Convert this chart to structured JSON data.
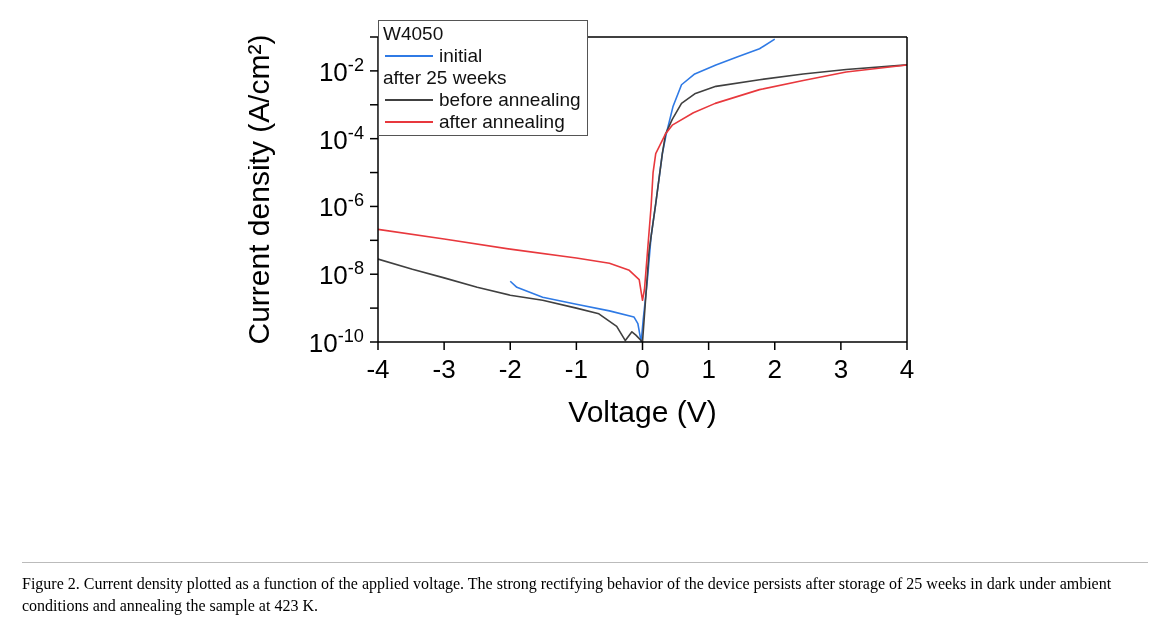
{
  "chart_data": {
    "type": "line",
    "xlabel": "Voltage (V)",
    "ylabel": "Current density (A/cm²)",
    "legend_title": "W4050",
    "legend": "top left",
    "log": "y",
    "marker": "none",
    "line_style": "solid",
    "grid": false,
    "xlim": [
      -4,
      4
    ],
    "xticks": [
      -4,
      -3,
      -2,
      -1,
      0,
      1,
      2,
      3,
      4
    ],
    "ylim": [
      1e-10,
      0.1
    ],
    "yticks": [
      {
        "value": 1e-10,
        "label": "10$^{-10}$"
      },
      {
        "value": 1e-09,
        "label": null
      },
      {
        "value": 1e-08,
        "label": "10$^{-8}$"
      },
      {
        "value": 1e-07,
        "label": null
      },
      {
        "value": 1e-06,
        "label": "10$^{-6}$"
      },
      {
        "value": 1e-05,
        "label": null
      },
      {
        "value": 0.0001,
        "label": "10$^{-4}$"
      },
      {
        "value": 0.001,
        "label": null
      },
      {
        "value": 0.01,
        "label": "10$^{-2}$"
      },
      {
        "value": 0.1,
        "label": null
      }
    ],
    "annotations": [
      "after 25 weeks",
      "Figure 2. Current density plotted as a function of the applied voltage. The strong rectifying behavior of the device persists after storage of 25 weeks in dark under ambient conditions and annealing the sample at 423 K."
    ],
    "series": [
      {
        "name": "initial",
        "color": "#2f7ae5",
        "x": [
          -2,
          -1.9,
          -1.51,
          -1,
          -0.5,
          -0.13,
          -0.07,
          -0.02,
          0.01,
          0.07,
          0.13,
          0.2,
          0.3,
          0.36,
          0.46,
          0.59,
          0.79,
          1.11,
          1.44,
          1.77,
          2
        ],
        "values": [
          6.2e-09,
          4.1e-09,
          2.1e-09,
          1.3e-09,
          8.3e-10,
          5.5e-10,
          3.5e-10,
          1e-10,
          4.4e-10,
          5.6e-09,
          1.3e-07,
          1.2e-06,
          3.6e-05,
          0.00014,
          0.00087,
          0.0039,
          0.0081,
          0.015,
          0.026,
          0.045,
          0.087
        ]
      },
      {
        "name": "before annealing",
        "color": "#404040",
        "x": [
          -4,
          -3.48,
          -3,
          -2.5,
          -2,
          -1.51,
          -1,
          -0.66,
          -0.39,
          -0.26,
          -0.16,
          -0.1,
          0,
          0.1,
          0.2,
          0.3,
          0.35,
          0.45,
          0.59,
          0.79,
          1.11,
          1.77,
          2.43,
          3.08,
          4
        ],
        "values": [
          2.8e-08,
          1.4e-08,
          7.8e-09,
          4.1e-09,
          2.4e-09,
          1.7e-09,
          1e-09,
          6.8e-10,
          2.9e-10,
          1.1e-10,
          2e-10,
          1.6e-10,
          1e-10,
          5e-08,
          1.2e-06,
          3.6e-05,
          0.00014,
          0.00037,
          0.0011,
          0.0021,
          0.0035,
          0.0055,
          0.0081,
          0.011,
          0.015
        ]
      },
      {
        "name": "after annealing",
        "color": "#e8383d",
        "x": [
          -4,
          -3,
          -2,
          -1,
          -0.5,
          -0.2,
          -0.05,
          0,
          0.03,
          0.13,
          0.16,
          0.2,
          0.35,
          0.45,
          0.77,
          1.1,
          1.77,
          2.43,
          3.08,
          4
        ],
        "values": [
          2.1e-07,
          1.1e-07,
          5.5e-08,
          3e-08,
          2.1e-08,
          1.3e-08,
          6.9e-09,
          1.7e-09,
          3.6e-09,
          1e-06,
          1e-05,
          3.6e-05,
          0.00014,
          0.00025,
          0.00058,
          0.0011,
          0.0028,
          0.0052,
          0.0093,
          0.015
        ]
      }
    ]
  }
}
